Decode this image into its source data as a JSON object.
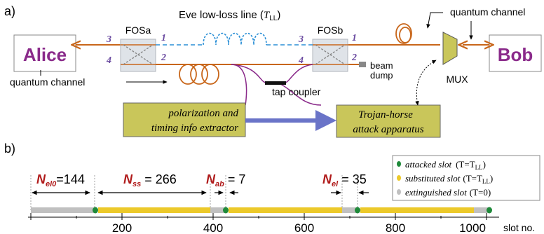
{
  "panel_a": {
    "label": "a)",
    "alice": "Alice",
    "bob": "Bob",
    "fosa": "FOSa",
    "fosb": "FOSb",
    "eve_line": "Eve low-loss line (",
    "eve_T": "T",
    "eve_sub": "LL",
    "eve_close": ")",
    "quantum_channel_left": "quantum channel",
    "quantum_channel_right": "quantum channel",
    "beam": "beam",
    "dump": "dump",
    "mux": "MUX",
    "tap_coupler": "tap coupler",
    "extractor_line1": "polarization and",
    "extractor_line2": "timing info extractor",
    "trojan_line1": "Trojan-horse",
    "trojan_line2": "attack apparatus",
    "port_fosa_3": "3",
    "port_fosa_4": "4",
    "port_fosa_1": "1",
    "port_fosa_2": "2",
    "port_fosb_3": "3",
    "port_fosb_4": "4",
    "port_fosb_1": "1",
    "port_fosb_2": "2",
    "colors": {
      "fiber": "#c8661a",
      "eve": "#2a8fd6",
      "box_fill": "#c9c65a",
      "purple_text": "#8a2a8a",
      "port_text": "#6a4aa0",
      "arrow_blue": "#6a74c8"
    }
  },
  "panel_b": {
    "label": "b)",
    "legend": {
      "attacked": "attacked   slot",
      "attacked_T": "(T=T",
      "attacked_sub": "LL",
      "attacked_close": ")",
      "substituted": "substituted slot",
      "substituted_T": "(T=T",
      "substituted_sub": "LL",
      "substituted_close": ")",
      "extinguished": "extinguished slot",
      "extinguished_T": "(T=0)"
    },
    "n_el0_label": "N",
    "n_el0_sub": "el0",
    "n_el0_value": "=144",
    "n_ss_label": "N",
    "n_ss_sub": "ss",
    "n_ss_value": " = 266",
    "n_ab_label": "N",
    "n_ab_sub": "ab",
    "n_ab_value": " = 7",
    "n_el_label": "N",
    "n_el_sub": "el",
    "n_el_value": " = 35",
    "axis_label": "slot no.",
    "ticks": [
      "200",
      "400",
      "600",
      "800",
      "1000"
    ],
    "colors": {
      "attacked": "#1f8a3a",
      "substituted": "#ecc92a",
      "extinguished": "#c0c0c0",
      "label_red": "#b01a1a"
    }
  }
}
